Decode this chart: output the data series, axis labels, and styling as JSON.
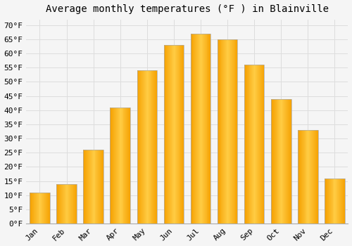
{
  "title": "Average monthly temperatures (°F ) in Blainville",
  "months": [
    "Jan",
    "Feb",
    "Mar",
    "Apr",
    "May",
    "Jun",
    "Jul",
    "Aug",
    "Sep",
    "Oct",
    "Nov",
    "Dec"
  ],
  "values": [
    11,
    14,
    26,
    41,
    54,
    63,
    67,
    65,
    56,
    44,
    33,
    16
  ],
  "bar_color_center": "#FFBB33",
  "bar_color_edge": "#F5A000",
  "bar_outline_color": "#AAAAAA",
  "background_color": "#F5F5F5",
  "grid_color": "#DDDDDD",
  "ylim": [
    0,
    72
  ],
  "yticks": [
    0,
    5,
    10,
    15,
    20,
    25,
    30,
    35,
    40,
    45,
    50,
    55,
    60,
    65,
    70
  ],
  "title_fontsize": 10,
  "tick_fontsize": 8,
  "tick_font": "monospace",
  "bar_width": 0.75
}
